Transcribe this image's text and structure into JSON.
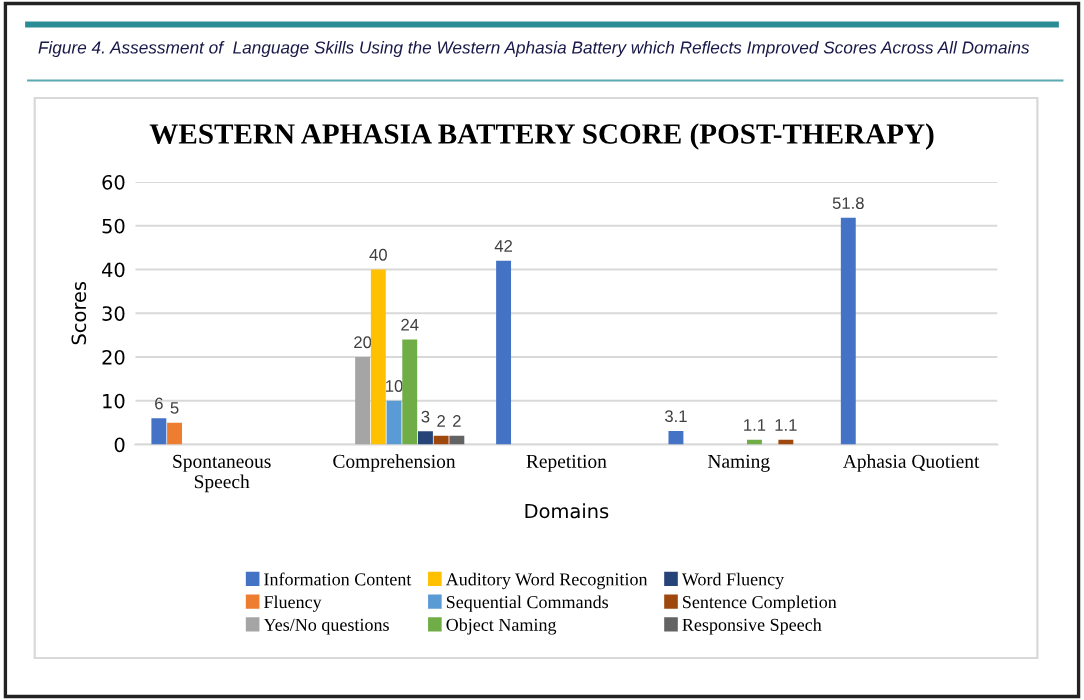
{
  "chart_data": {
    "type": "bar",
    "title": "WESTERN APHASIA BATTERY SCORE (POST-THERAPY)",
    "annotations": [
      "Figure 4. Assessment of  Language Skills Using the Western Aphasia Battery which Reflects Improved Scores Across All Domains"
    ],
    "xlabel": "Domains",
    "ylabel": "Scores",
    "categories": [
      "Spontaneous\nSpeech",
      "Comprehension",
      "Repetition",
      "Naming",
      "Aphasia Quotient"
    ],
    "series": [
      {
        "name": "Information Content",
        "color": "#4472c4",
        "values": [
          6,
          null,
          42,
          3.1,
          51.8
        ]
      },
      {
        "name": "Fluency",
        "color": "#ed7d31",
        "values": [
          5,
          null,
          null,
          null,
          null
        ]
      },
      {
        "name": "Yes/No questions",
        "color": "#a5a5a5",
        "values": [
          null,
          20,
          null,
          null,
          null
        ]
      },
      {
        "name": "Auditory Word Recognition",
        "color": "#ffc000",
        "values": [
          null,
          40,
          null,
          null,
          null
        ]
      },
      {
        "name": "Sequential Commands",
        "color": "#5b9bd5",
        "values": [
          null,
          10,
          null,
          null,
          null
        ]
      },
      {
        "name": "Object Naming",
        "color": "#70ad47",
        "values": [
          null,
          24,
          null,
          1.1,
          null
        ]
      },
      {
        "name": "Word Fluency",
        "color": "#264478",
        "values": [
          null,
          3,
          null,
          null,
          null
        ]
      },
      {
        "name": "Sentence Completion",
        "color": "#9e480e",
        "values": [
          null,
          2,
          null,
          1.1,
          null
        ]
      },
      {
        "name": "Responsive Speech",
        "color": "#636363",
        "values": [
          null,
          2,
          null,
          null,
          null
        ]
      }
    ],
    "ylim": [
      0,
      60
    ],
    "yticks": [
      0,
      10,
      20,
      30,
      40,
      50,
      60
    ],
    "grid": "y",
    "legend": "bottom",
    "data_labels": true
  }
}
